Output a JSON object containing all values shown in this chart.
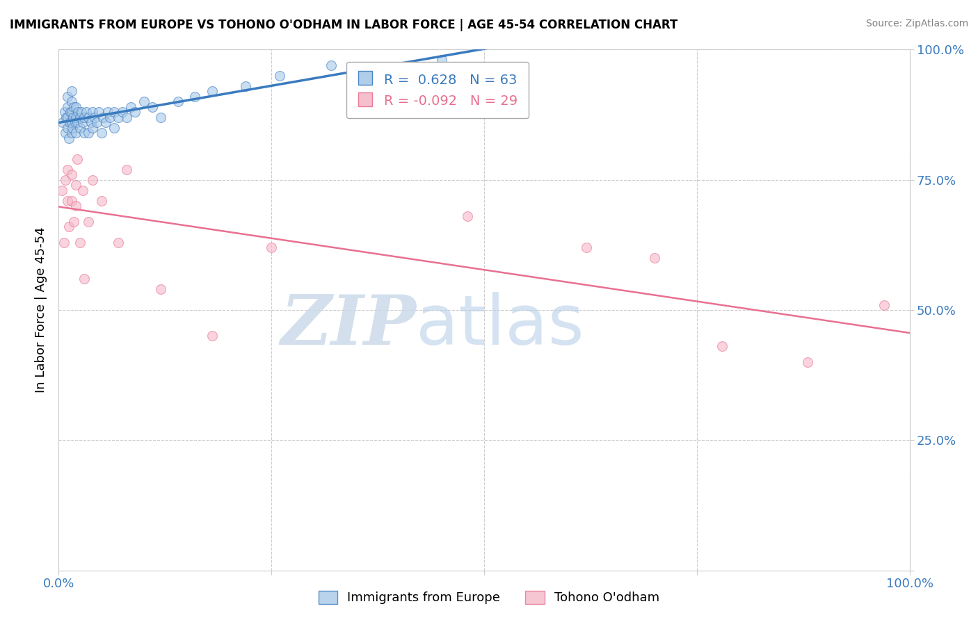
{
  "title": "IMMIGRANTS FROM EUROPE VS TOHONO O'ODHAM IN LABOR FORCE | AGE 45-54 CORRELATION CHART",
  "source": "Source: ZipAtlas.com",
  "ylabel": "In Labor Force | Age 45-54",
  "xlim": [
    0,
    1
  ],
  "ylim": [
    0,
    1
  ],
  "legend_label1": "Immigrants from Europe",
  "legend_label2": "Tohono O'odham",
  "R1": 0.628,
  "N1": 63,
  "R2": -0.092,
  "N2": 29,
  "blue_color": "#a8c8e8",
  "pink_color": "#f5b8c8",
  "blue_line_color": "#3a7bbf",
  "pink_line_color": "#e87090",
  "background_color": "#ffffff",
  "grid_color": "#cccccc",
  "blue_scatter_x": [
    0.005,
    0.007,
    0.008,
    0.009,
    0.01,
    0.01,
    0.01,
    0.01,
    0.012,
    0.013,
    0.014,
    0.015,
    0.015,
    0.015,
    0.015,
    0.015,
    0.016,
    0.017,
    0.018,
    0.019,
    0.02,
    0.02,
    0.02,
    0.022,
    0.023,
    0.025,
    0.025,
    0.027,
    0.028,
    0.03,
    0.03,
    0.032,
    0.035,
    0.035,
    0.038,
    0.04,
    0.04,
    0.042,
    0.045,
    0.047,
    0.05,
    0.052,
    0.055,
    0.058,
    0.06,
    0.065,
    0.065,
    0.07,
    0.075,
    0.08,
    0.085,
    0.09,
    0.1,
    0.11,
    0.12,
    0.14,
    0.16,
    0.18,
    0.22,
    0.26,
    0.32,
    0.38,
    0.45
  ],
  "blue_scatter_y": [
    0.86,
    0.88,
    0.84,
    0.87,
    0.85,
    0.87,
    0.89,
    0.91,
    0.83,
    0.86,
    0.88,
    0.84,
    0.86,
    0.88,
    0.9,
    0.92,
    0.85,
    0.87,
    0.89,
    0.86,
    0.84,
    0.87,
    0.89,
    0.86,
    0.88,
    0.85,
    0.87,
    0.88,
    0.86,
    0.84,
    0.87,
    0.88,
    0.84,
    0.87,
    0.86,
    0.85,
    0.88,
    0.87,
    0.86,
    0.88,
    0.84,
    0.87,
    0.86,
    0.88,
    0.87,
    0.85,
    0.88,
    0.87,
    0.88,
    0.87,
    0.89,
    0.88,
    0.9,
    0.89,
    0.87,
    0.9,
    0.91,
    0.92,
    0.93,
    0.95,
    0.97,
    0.96,
    0.98
  ],
  "pink_scatter_x": [
    0.004,
    0.006,
    0.008,
    0.01,
    0.01,
    0.012,
    0.015,
    0.015,
    0.018,
    0.02,
    0.02,
    0.022,
    0.025,
    0.028,
    0.03,
    0.035,
    0.04,
    0.05,
    0.07,
    0.08,
    0.12,
    0.18,
    0.25,
    0.48,
    0.62,
    0.7,
    0.78,
    0.88,
    0.97
  ],
  "pink_scatter_y": [
    0.73,
    0.63,
    0.75,
    0.71,
    0.77,
    0.66,
    0.71,
    0.76,
    0.67,
    0.7,
    0.74,
    0.79,
    0.63,
    0.73,
    0.56,
    0.67,
    0.75,
    0.71,
    0.63,
    0.77,
    0.54,
    0.45,
    0.62,
    0.68,
    0.62,
    0.6,
    0.43,
    0.4,
    0.51
  ]
}
